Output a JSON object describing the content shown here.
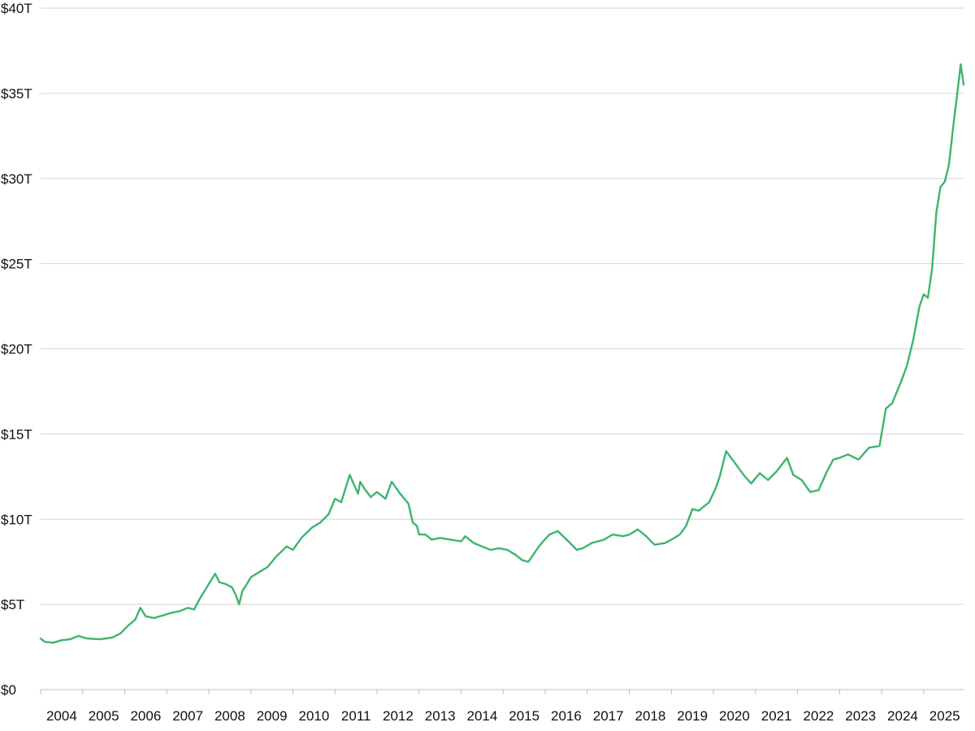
{
  "chart_data": {
    "type": "line",
    "title": "",
    "xlabel": "",
    "ylabel": "",
    "ylim": [
      0,
      40
    ],
    "yticks": [
      {
        "value": 0,
        "label": "$0"
      },
      {
        "value": 5,
        "label": "$5T"
      },
      {
        "value": 10,
        "label": "$10T"
      },
      {
        "value": 15,
        "label": "$15T"
      },
      {
        "value": 20,
        "label": "$20T"
      },
      {
        "value": 25,
        "label": "$25T"
      },
      {
        "value": 30,
        "label": "$30T"
      },
      {
        "value": 35,
        "label": "$35T"
      },
      {
        "value": 40,
        "label": "$40T"
      }
    ],
    "xlim": [
      2004.0,
      2025.95
    ],
    "xticks": [
      "2004",
      "2005",
      "2006",
      "2007",
      "2008",
      "2009",
      "2010",
      "2011",
      "2012",
      "2013",
      "2014",
      "2015",
      "2016",
      "2017",
      "2018",
      "2019",
      "2020",
      "2021",
      "2022",
      "2023",
      "2024",
      "2025"
    ],
    "grid": true,
    "series": [
      {
        "color": "#3db56e",
        "x": [
          2004.0,
          2004.1,
          2004.3,
          2004.5,
          2004.7,
          2004.9,
          2005.1,
          2005.4,
          2005.7,
          2005.9,
          2006.1,
          2006.25,
          2006.37,
          2006.5,
          2006.7,
          2006.9,
          2007.1,
          2007.3,
          2007.5,
          2007.65,
          2007.8,
          2008.0,
          2008.15,
          2008.25,
          2008.4,
          2008.55,
          2008.65,
          2008.72,
          2008.8,
          2008.88,
          2009.0,
          2009.2,
          2009.4,
          2009.6,
          2009.85,
          2010.0,
          2010.2,
          2010.45,
          2010.65,
          2010.85,
          2011.0,
          2011.15,
          2011.35,
          2011.55,
          2011.6,
          2011.7,
          2011.85,
          2012.0,
          2012.2,
          2012.35,
          2012.55,
          2012.75,
          2012.85,
          2012.95,
          2013.0,
          2013.15,
          2013.3,
          2013.5,
          2013.75,
          2014.0,
          2014.1,
          2014.3,
          2014.5,
          2014.7,
          2014.9,
          2015.1,
          2015.3,
          2015.45,
          2015.6,
          2015.85,
          2015.95,
          2016.1,
          2016.3,
          2016.55,
          2016.75,
          2016.9,
          2017.1,
          2017.4,
          2017.6,
          2017.85,
          2018.0,
          2018.2,
          2018.4,
          2018.6,
          2018.85,
          2019.0,
          2019.2,
          2019.35,
          2019.5,
          2019.65,
          2019.9,
          2020.05,
          2020.15,
          2020.3,
          2020.45,
          2020.6,
          2020.75,
          2020.9,
          2021.1,
          2021.3,
          2021.5,
          2021.75,
          2021.9,
          2022.1,
          2022.3,
          2022.5,
          2022.7,
          2022.85,
          2023.0,
          2023.2,
          2023.45,
          2023.7,
          2023.95,
          2024.1,
          2024.25,
          2024.45,
          2024.6,
          2024.75,
          2024.9,
          2025.0,
          2025.1,
          2025.2,
          2025.3,
          2025.4,
          2025.5,
          2025.6,
          2025.7,
          2025.8,
          2025.88,
          2025.95
        ],
        "y": [
          3.0,
          2.8,
          2.75,
          2.9,
          2.95,
          3.15,
          3.0,
          2.95,
          3.05,
          3.3,
          3.8,
          4.1,
          4.8,
          4.3,
          4.2,
          4.35,
          4.5,
          4.6,
          4.8,
          4.7,
          5.4,
          6.2,
          6.8,
          6.3,
          6.2,
          6.0,
          5.5,
          5.0,
          5.8,
          6.1,
          6.6,
          6.9,
          7.2,
          7.8,
          8.4,
          8.2,
          8.9,
          9.5,
          9.8,
          10.3,
          11.2,
          11.0,
          12.6,
          11.5,
          12.2,
          11.8,
          11.3,
          11.6,
          11.2,
          12.2,
          11.5,
          10.9,
          9.8,
          9.6,
          9.1,
          9.1,
          8.8,
          8.9,
          8.8,
          8.7,
          9.0,
          8.6,
          8.4,
          8.2,
          8.3,
          8.2,
          7.9,
          7.6,
          7.5,
          8.4,
          8.7,
          9.1,
          9.3,
          8.7,
          8.2,
          8.3,
          8.6,
          8.8,
          9.1,
          9.0,
          9.1,
          9.4,
          9.0,
          8.5,
          8.6,
          8.8,
          9.1,
          9.6,
          10.6,
          10.5,
          11.0,
          11.8,
          12.5,
          14.0,
          13.5,
          13.0,
          12.5,
          12.1,
          12.7,
          12.3,
          12.8,
          13.6,
          12.6,
          12.3,
          11.6,
          11.7,
          12.8,
          13.5,
          13.6,
          13.8,
          13.5,
          14.2,
          14.3,
          16.5,
          16.8,
          18.0,
          19.0,
          20.5,
          22.5,
          23.2,
          23.0,
          24.7,
          28.0,
          29.5,
          29.8,
          30.8,
          33.0,
          35.0,
          36.7,
          35.5
        ]
      }
    ]
  }
}
